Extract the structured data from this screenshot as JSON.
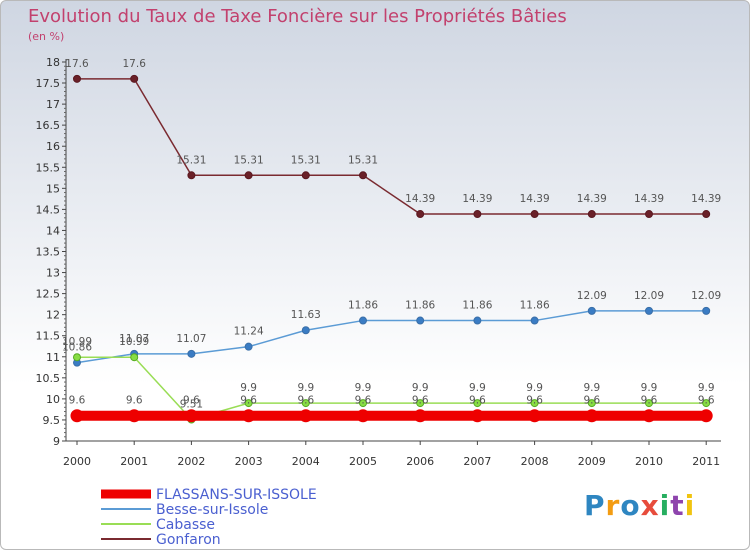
{
  "title": "Evolution du Taux de Taxe Foncière sur les Propriétés Bâties",
  "unit": "(en %)",
  "logo": {
    "letters": [
      "P",
      "r",
      "o",
      "x",
      "i",
      "t",
      "i"
    ],
    "colors": [
      "#2e86c1",
      "#f39c12",
      "#2e86c1",
      "#e74c3c",
      "#27ae60",
      "#8e44ad",
      "#f1c40f"
    ]
  },
  "chart_data": {
    "type": "line",
    "x": [
      "2000",
      "2001",
      "2002",
      "2003",
      "2004",
      "2005",
      "2006",
      "2007",
      "2008",
      "2009",
      "2010",
      "2011"
    ],
    "ylim": [
      9,
      18
    ],
    "yticks": [
      "9",
      "9.5",
      "10",
      "10.5",
      "11",
      "11.5",
      "12",
      "12.5",
      "13",
      "13.5",
      "14",
      "14.5",
      "15",
      "15.5",
      "16",
      "16.5",
      "17",
      "17.5",
      "18"
    ],
    "grid": false,
    "legend_position": "bottom-left",
    "series": [
      {
        "name": "FLASSANS-SUR-ISSOLE",
        "color": "#ee0000",
        "values": [
          9.6,
          9.6,
          9.6,
          9.6,
          9.6,
          9.6,
          9.6,
          9.6,
          9.6,
          9.6,
          9.6,
          9.6
        ],
        "labels": [
          "9.6",
          "9.6",
          "9.6",
          "9.6",
          "9.6",
          "9.6",
          "9.6",
          "9.6",
          "9.6",
          "9.6",
          "9.6",
          "9.6"
        ]
      },
      {
        "name": "Besse-sur-Issole",
        "color": "#5b9bd5",
        "values": [
          10.86,
          11.07,
          11.07,
          11.24,
          11.63,
          11.86,
          11.86,
          11.86,
          11.86,
          12.09,
          12.09,
          12.09
        ],
        "labels": [
          "10.86",
          "11.07",
          "11.07",
          "11.24",
          "11.63",
          "11.86",
          "11.86",
          "11.86",
          "11.86",
          "12.09",
          "12.09",
          "12.09"
        ]
      },
      {
        "name": "Cabasse",
        "color": "#99dd55",
        "values": [
          10.99,
          10.99,
          9.51,
          9.9,
          9.9,
          9.9,
          9.9,
          9.9,
          9.9,
          9.9,
          9.9,
          9.9
        ],
        "labels": [
          "10.99",
          "10.99",
          "9.51",
          "9.9",
          "9.9",
          "9.9",
          "9.9",
          "9.9",
          "9.9",
          "9.9",
          "9.9",
          "9.9"
        ]
      },
      {
        "name": "Gonfaron",
        "color": "#7a2a30",
        "values": [
          17.6,
          17.6,
          15.31,
          15.31,
          15.31,
          15.31,
          14.39,
          14.39,
          14.39,
          14.39,
          14.39,
          14.39
        ],
        "labels": [
          "17.6",
          "17.6",
          "15.31",
          "15.31",
          "15.31",
          "15.31",
          "14.39",
          "14.39",
          "14.39",
          "14.39",
          "14.39",
          "14.39"
        ]
      }
    ]
  }
}
